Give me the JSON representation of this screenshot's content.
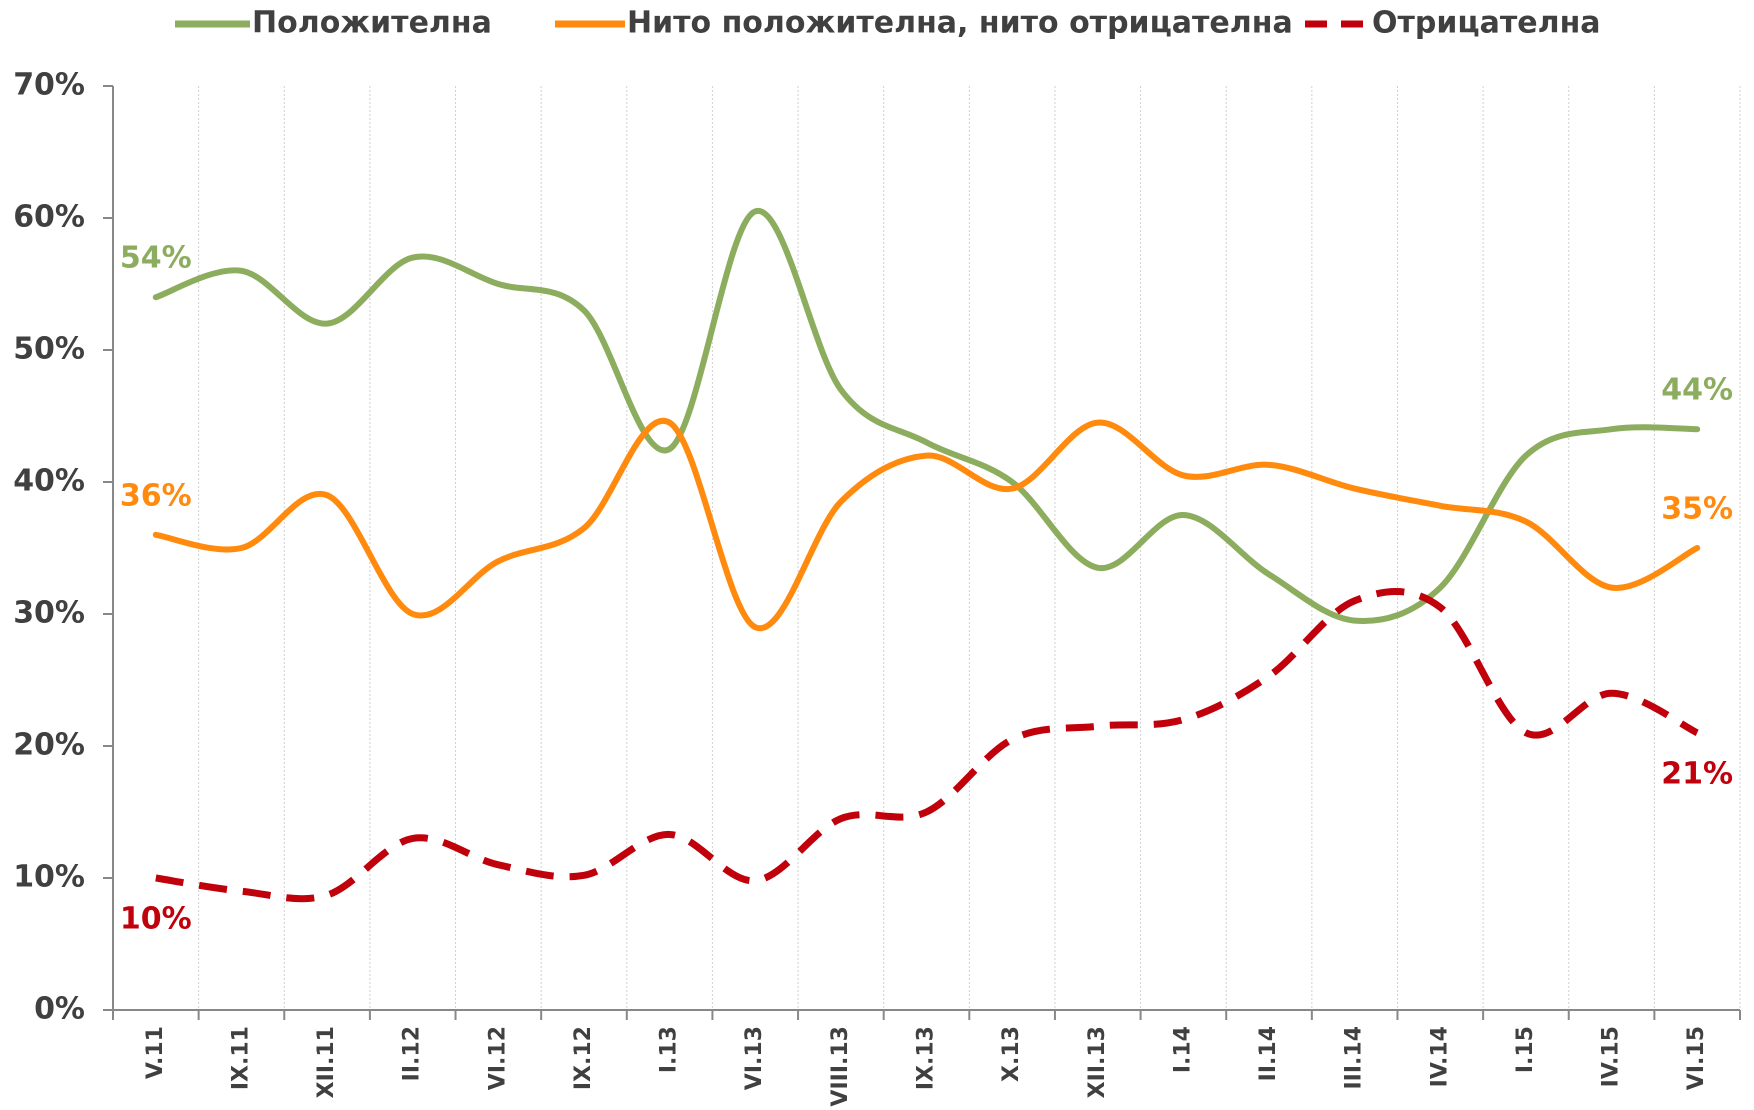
{
  "chart_data": {
    "type": "line",
    "categories": [
      "V.11",
      "IX.11",
      "XII.11",
      "II.12",
      "VI.12",
      "IX.12",
      "I.13",
      "VI.13",
      "VIII.13",
      "IX.13",
      "X.13",
      "XII.13",
      "I.14",
      "II.14",
      "III.14",
      "IV.14",
      "I.15",
      "IV.15",
      "VI.15"
    ],
    "series": [
      {
        "name": "Положителна",
        "color": "#8cad5e",
        "dashed": false,
        "values": [
          54,
          56,
          52,
          57,
          55,
          53,
          42.5,
          60.5,
          47,
          43,
          40,
          33.5,
          37.5,
          33,
          29.5,
          32,
          42,
          44,
          44
        ],
        "value_labels": [
          "54%",
          null,
          null,
          null,
          null,
          null,
          null,
          null,
          null,
          null,
          null,
          null,
          null,
          null,
          null,
          null,
          null,
          null,
          "44%"
        ]
      },
      {
        "name": "Нито положителна, нито отрицателна",
        "color": "#ff8a0d",
        "dashed": false,
        "values": [
          36,
          35,
          39,
          30,
          34,
          36.5,
          44.5,
          29,
          38.5,
          42,
          39.5,
          44.5,
          40.5,
          41.3,
          39.5,
          38.2,
          37,
          32,
          35
        ],
        "value_labels": [
          "36%",
          null,
          null,
          null,
          null,
          null,
          null,
          null,
          null,
          null,
          null,
          null,
          null,
          null,
          null,
          null,
          null,
          null,
          "35%"
        ]
      },
      {
        "name": "Отрицателна",
        "color": "#c0000b",
        "dashed": true,
        "values": [
          10,
          9,
          8.7,
          13,
          11,
          10.2,
          13.3,
          9.8,
          14.5,
          15,
          20.5,
          21.5,
          22,
          25.3,
          31,
          30.5,
          21,
          24,
          21
        ],
        "value_labels": [
          "10%",
          null,
          null,
          null,
          null,
          null,
          null,
          null,
          null,
          null,
          null,
          null,
          null,
          null,
          null,
          null,
          null,
          null,
          "21%"
        ]
      }
    ],
    "ylim": [
      0,
      70
    ],
    "yticks": [
      {
        "value": 0,
        "label": "0%"
      },
      {
        "value": 10,
        "label": "10%"
      },
      {
        "value": 20,
        "label": "20%"
      },
      {
        "value": 30,
        "label": "30%"
      },
      {
        "value": 40,
        "label": "40%"
      },
      {
        "value": 50,
        "label": "50%"
      },
      {
        "value": 60,
        "label": "60%"
      },
      {
        "value": 70,
        "label": "70%"
      }
    ],
    "grid": true
  }
}
